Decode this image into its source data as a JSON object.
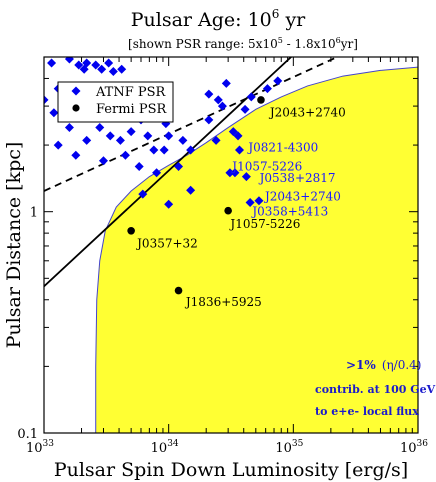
{
  "chart_data": {
    "type": "scatter",
    "title": "Pulsar Age: 10",
    "title_sup": "6",
    "title_unit": " yr",
    "subtitle": "[shown PSR range: 5x10",
    "subtitle_sup1": "5",
    "subtitle_mid": " - 1.8x10",
    "subtitle_sup2": "6",
    "subtitle_end": "yr]",
    "xlabel": "Pulsar Spin Down Luminosity [erg/s]",
    "ylabel": "Pulsar Distance [kpc]",
    "xscale": "log",
    "yscale": "log",
    "xlim": [
      1e+33,
      1e+36
    ],
    "ylim": [
      0.1,
      5
    ],
    "x_ticks": [
      {
        "value": 1e+33,
        "base": "10",
        "exp": "33"
      },
      {
        "value": 1e+34,
        "base": "10",
        "exp": "34"
      },
      {
        "value": 1e+35,
        "base": "10",
        "exp": "35"
      },
      {
        "value": 1e+36,
        "base": "10",
        "exp": "36"
      }
    ],
    "y_ticks": [
      {
        "value": 0.1,
        "label": "0.1"
      },
      {
        "value": 1,
        "label": "1"
      }
    ],
    "legend": {
      "placement": "top-left",
      "entries": [
        {
          "label": "ATNF PSR",
          "marker": "diamond",
          "color": "#0000ee"
        },
        {
          "label": "Fermi PSR",
          "marker": "circle",
          "color": "#000000"
        }
      ]
    },
    "series": [
      {
        "name": "ATNF PSR",
        "marker": "diamond",
        "color": "#0000ee",
        "points": [
          {
            "x": 1.15e+33,
            "y": 4.7
          },
          {
            "x": 1.3e+33,
            "y": 3.6
          },
          {
            "x": 1.6e+33,
            "y": 4.9
          },
          {
            "x": 1.9e+33,
            "y": 4.6
          },
          {
            "x": 2.1e+33,
            "y": 4.4
          },
          {
            "x": 2.2e+33,
            "y": 4.7
          },
          {
            "x": 2.6e+33,
            "y": 4.6
          },
          {
            "x": 2.9e+33,
            "y": 4.4
          },
          {
            "x": 3.3e+33,
            "y": 4.7
          },
          {
            "x": 3.6e+33,
            "y": 4.3
          },
          {
            "x": 4.2e+33,
            "y": 4.4
          },
          {
            "x": 3e+33,
            "y": 3.2
          },
          {
            "x": 4e+33,
            "y": 3.6
          },
          {
            "x": 1e+33,
            "y": 3.2
          },
          {
            "x": 1.2e+33,
            "y": 2.8
          },
          {
            "x": 1.6e+33,
            "y": 2.4
          },
          {
            "x": 1.3e+33,
            "y": 2.0
          },
          {
            "x": 1.8e+33,
            "y": 1.8
          },
          {
            "x": 2.2e+33,
            "y": 2.1
          },
          {
            "x": 2.8e+33,
            "y": 2.4
          },
          {
            "x": 3.4e+33,
            "y": 2.2
          },
          {
            "x": 3e+33,
            "y": 1.7
          },
          {
            "x": 4.1e+33,
            "y": 2.1
          },
          {
            "x": 4.5e+33,
            "y": 1.8
          },
          {
            "x": 5e+33,
            "y": 2.3
          },
          {
            "x": 6e+33,
            "y": 2.6
          },
          {
            "x": 6.8e+33,
            "y": 2.2
          },
          {
            "x": 5.8e+33,
            "y": 1.6
          },
          {
            "x": 7.6e+33,
            "y": 1.9
          },
          {
            "x": 8e+33,
            "y": 1.5
          },
          {
            "x": 9.2e+33,
            "y": 1.9
          },
          {
            "x": 9.5e+33,
            "y": 2.5
          },
          {
            "x": 6.2e+33,
            "y": 1.2
          },
          {
            "x": 1e+34,
            "y": 2.2
          },
          {
            "x": 1.3e+34,
            "y": 2.1
          },
          {
            "x": 1.2e+34,
            "y": 1.6
          },
          {
            "x": 1.5e+34,
            "y": 1.9
          },
          {
            "x": 6.5e+33,
            "y": 3.0
          },
          {
            "x": 8.4e+33,
            "y": 3.2
          },
          {
            "x": 2.1e+34,
            "y": 2.6
          },
          {
            "x": 2.5e+34,
            "y": 3.2
          },
          {
            "x": 2.7e+34,
            "y": 3.0
          },
          {
            "x": 2.4e+34,
            "y": 2.1
          },
          {
            "x": 1.5e+34,
            "y": 1.25
          },
          {
            "x": 2.1e+34,
            "y": 3.4
          },
          {
            "x": 2.9e+34,
            "y": 3.8
          },
          {
            "x": 3.3e+34,
            "y": 2.3
          },
          {
            "x": 4.1e+34,
            "y": 2.9
          },
          {
            "x": 4.6e+34,
            "y": 3.3
          },
          {
            "x": 6.2e+34,
            "y": 3.6
          },
          {
            "x": 7.5e+34,
            "y": 3.9
          },
          {
            "x": 3.1e+34,
            "y": 1.5
          },
          {
            "x": 3.6e+34,
            "y": 2.2
          },
          {
            "x": 3.7e+34,
            "y": 1.9
          },
          {
            "x": 3.4e+34,
            "y": 1.5
          },
          {
            "x": 4.2e+34,
            "y": 1.44
          },
          {
            "x": 4.5e+34,
            "y": 1.1
          },
          {
            "x": 5.3e+34,
            "y": 1.12
          },
          {
            "x": 1e+34,
            "y": 1.08
          }
        ]
      },
      {
        "name": "Fermi PSR",
        "marker": "circle",
        "color": "#000000",
        "points": [
          {
            "x": 5e+33,
            "y": 0.82
          },
          {
            "x": 3e+34,
            "y": 1.01
          },
          {
            "x": 1.2e+34,
            "y": 0.44
          },
          {
            "x": 5.5e+34,
            "y": 3.2
          }
        ]
      }
    ],
    "point_labels": [
      {
        "text": "J2043+2740",
        "x": 5.8e+34,
        "y": 2.8,
        "color": "black"
      },
      {
        "text": "J0821-4300",
        "x": 3.9e+34,
        "y": 1.95,
        "color": "blue"
      },
      {
        "text": "J1057-5226",
        "x": 2.9e+34,
        "y": 1.6,
        "color": "blue"
      },
      {
        "text": "J0538+2817",
        "x": 4.8e+34,
        "y": 1.42,
        "color": "blue"
      },
      {
        "text": "J2043+2740",
        "x": 5.3e+34,
        "y": 1.17,
        "color": "blue"
      },
      {
        "text": "J0358+5413",
        "x": 4.2e+34,
        "y": 1.0,
        "color": "blue"
      },
      {
        "text": "J1057-5226",
        "x": 2.8e+34,
        "y": 0.88,
        "color": "black"
      },
      {
        "text": "J0357+32",
        "x": 5e+33,
        "y": 0.72,
        "color": "black"
      },
      {
        "text": "J1836+5925",
        "x": 1.23e+34,
        "y": 0.39,
        "color": "black"
      }
    ],
    "lines": [
      {
        "style": "solid",
        "from": {
          "x": 1e+33,
          "y": 0.46
        },
        "to": {
          "x": 9.6e+34,
          "y": 5
        }
      },
      {
        "style": "dashed",
        "from": {
          "x": 1e+33,
          "y": 1.24
        },
        "to": {
          "x": 2.25e+35,
          "y": 5
        }
      }
    ],
    "region": {
      "color": "#ffff33",
      "edge_color": "#4444cc",
      "boundary": [
        {
          "x": 2.6e+33,
          "y": 0.1
        },
        {
          "x": 2.6e+33,
          "y": 0.2
        },
        {
          "x": 2.65e+33,
          "y": 0.4
        },
        {
          "x": 2.8e+33,
          "y": 0.6
        },
        {
          "x": 3.1e+33,
          "y": 0.82
        },
        {
          "x": 3.8e+33,
          "y": 1.05
        },
        {
          "x": 5e+33,
          "y": 1.24
        },
        {
          "x": 7e+33,
          "y": 1.44
        },
        {
          "x": 1e+34,
          "y": 1.62
        },
        {
          "x": 1.4e+34,
          "y": 1.8
        },
        {
          "x": 2e+34,
          "y": 2.05
        },
        {
          "x": 3e+34,
          "y": 2.4
        },
        {
          "x": 5e+34,
          "y": 2.9
        },
        {
          "x": 8e+34,
          "y": 3.3
        },
        {
          "x": 1.3e+35,
          "y": 3.7
        },
        {
          "x": 2.5e+35,
          "y": 4.1
        },
        {
          "x": 5e+35,
          "y": 4.35
        },
        {
          "x": 1e+36,
          "y": 4.5
        }
      ]
    },
    "annotation": {
      "line1": ">1%",
      "line1_note": "(η/0.4)",
      "line2": "contrib. at 100 GeV",
      "line3": "to e+e- local flux",
      "color": "#1a1acc"
    }
  }
}
